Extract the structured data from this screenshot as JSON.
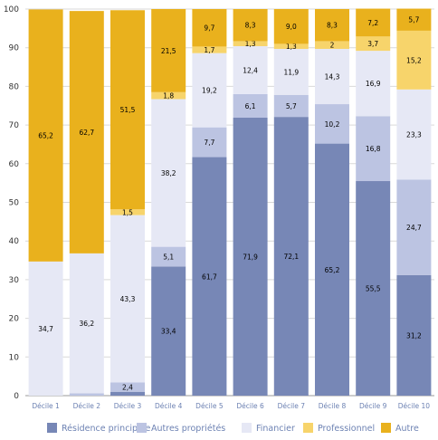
{
  "chart_data": {
    "type": "bar",
    "stacked": true,
    "categories": [
      "Décile 1",
      "Décile 2",
      "Décile 3",
      "Décile 4",
      "Décile 5",
      "Décile 6",
      "Décile 7",
      "Décile 8",
      "Décile 9",
      "Décile 10"
    ],
    "ylim": [
      0,
      100
    ],
    "yticks": [
      0,
      10,
      20,
      30,
      40,
      50,
      60,
      70,
      80,
      90,
      100
    ],
    "grid": true,
    "legend_position": "bottom",
    "series": [
      {
        "name": "Résidence principale",
        "color": "#7787b6",
        "values": [
          0,
          0,
          1.0,
          33.4,
          61.7,
          71.9,
          72.1,
          65.2,
          55.5,
          31.2
        ],
        "labels": [
          "",
          "",
          "",
          "33,4",
          "61,7",
          "71,9",
          "72,1",
          "65,2",
          "55,5",
          "31,2"
        ]
      },
      {
        "name": "Autres propriétés",
        "color": "#bcc4e2",
        "values": [
          0,
          0.6,
          2.4,
          5.1,
          7.7,
          6.1,
          5.7,
          10.2,
          16.8,
          24.7
        ],
        "labels": [
          "",
          "",
          "2,4",
          "5,1",
          "7,7",
          "6,1",
          "5,7",
          "10,2",
          "16,8",
          "24,7"
        ]
      },
      {
        "name": "Financier",
        "color": "#e6e8f5",
        "values": [
          34.7,
          36.2,
          43.3,
          38.2,
          19.2,
          12.4,
          11.9,
          14.3,
          16.9,
          23.3
        ],
        "labels": [
          "34,7",
          "36,2",
          "43,3",
          "38,2",
          "19,2",
          "12,4",
          "11,9",
          "14,3",
          "16,9",
          "23,3"
        ]
      },
      {
        "name": "Professionnel",
        "color": "#f7d46b",
        "values": [
          0,
          0,
          1.5,
          1.8,
          1.7,
          1.3,
          1.3,
          2,
          3.7,
          15.2
        ],
        "labels": [
          "",
          "",
          "1,5",
          "1,8",
          "1,7",
          "1,3",
          "1,3",
          "2",
          "3,7",
          "15,2"
        ]
      },
      {
        "name": "Autre",
        "color": "#e9b11d",
        "values": [
          65.2,
          62.7,
          51.5,
          21.5,
          9.7,
          8.3,
          9.0,
          8.3,
          7.2,
          5.7
        ],
        "labels": [
          "65,2",
          "62,7",
          "51,5",
          "21,5",
          "9,7",
          "8,3",
          "9,0",
          "8,3",
          "7,2",
          "5,7"
        ]
      }
    ]
  }
}
